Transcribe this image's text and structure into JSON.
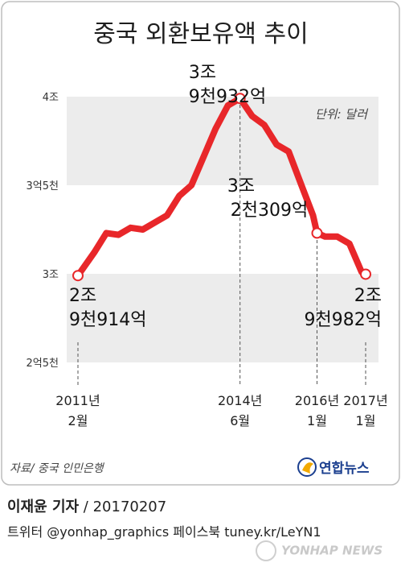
{
  "chart_data": {
    "type": "line",
    "title": "중국 외환보유액 추이",
    "unit_label": "단위: 달러",
    "y_ticks": [
      {
        "value": 4.0,
        "label": "4조"
      },
      {
        "value": 3.5,
        "label": "3억5천"
      },
      {
        "value": 3.0,
        "label": "3조"
      },
      {
        "value": 2.5,
        "label": "2억5천"
      }
    ],
    "ylim": [
      2.5,
      4.0
    ],
    "x_ticks": [
      {
        "year": "2011년",
        "month": "2월"
      },
      {
        "year": "2014년",
        "month": "6월"
      },
      {
        "year": "2016년",
        "month": "1월"
      },
      {
        "year": "2017년",
        "month": "1월"
      }
    ],
    "series": [
      {
        "color": "#e8272a",
        "points": [
          {
            "x": "2011-02",
            "y": 2.99
          },
          {
            "x": "2011-06",
            "y": 3.12
          },
          {
            "x": "2011-09",
            "y": 3.23
          },
          {
            "x": "2011-12",
            "y": 3.22
          },
          {
            "x": "2012-03",
            "y": 3.26
          },
          {
            "x": "2012-06",
            "y": 3.25
          },
          {
            "x": "2012-09",
            "y": 3.29
          },
          {
            "x": "2012-12",
            "y": 3.33
          },
          {
            "x": "2013-03",
            "y": 3.44
          },
          {
            "x": "2013-06",
            "y": 3.5
          },
          {
            "x": "2013-09",
            "y": 3.66
          },
          {
            "x": "2013-12",
            "y": 3.82
          },
          {
            "x": "2014-03",
            "y": 3.95
          },
          {
            "x": "2014-06",
            "y": 3.99
          },
          {
            "x": "2014-09",
            "y": 3.89
          },
          {
            "x": "2014-12",
            "y": 3.84
          },
          {
            "x": "2015-03",
            "y": 3.73
          },
          {
            "x": "2015-06",
            "y": 3.69
          },
          {
            "x": "2015-09",
            "y": 3.51
          },
          {
            "x": "2015-12",
            "y": 3.33
          },
          {
            "x": "2016-01",
            "y": 3.23
          },
          {
            "x": "2016-03",
            "y": 3.21
          },
          {
            "x": "2016-06",
            "y": 3.21
          },
          {
            "x": "2016-09",
            "y": 3.17
          },
          {
            "x": "2016-12",
            "y": 3.01
          },
          {
            "x": "2017-01",
            "y": 2.998
          }
        ]
      }
    ],
    "annotations": [
      {
        "line1": "2조",
        "line2": "9천914억"
      },
      {
        "line1": "3조",
        "line2": "9천932억"
      },
      {
        "line1": "3조",
        "line2": "2천309억"
      },
      {
        "line1": "2조",
        "line2": "9천982억"
      }
    ],
    "grid_bands": true,
    "source": "자료/ 중국 인민은행"
  },
  "logo": {
    "text": "연합뉴스",
    "accent_color": "#1b3f8f"
  },
  "footer": {
    "author": "이재윤 기자",
    "date": " / 20170207",
    "social": "트위터 @yonhap_graphics  페이스북 tuney.kr/LeYN1",
    "watermark": "YONHAP NEWS"
  }
}
